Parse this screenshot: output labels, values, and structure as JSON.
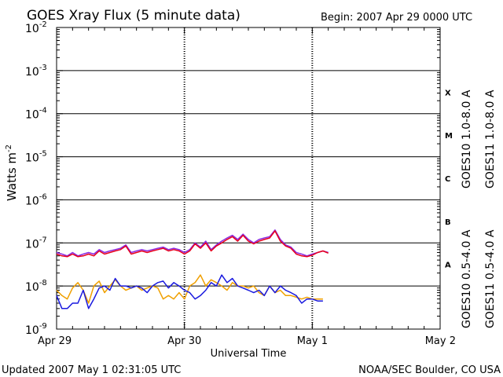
{
  "header": {
    "title": "GOES Xray Flux (5 minute data)",
    "begin": "Begin:  2007 Apr 29 0000 UTC"
  },
  "footer": {
    "updated": "Updated 2007 May  1 02:31:05 UTC",
    "source": "NOAA/SEC Boulder, CO USA"
  },
  "chart_data": {
    "type": "line",
    "title": "GOES Xray Flux (5 minute data)",
    "xlabel": "Universal Time",
    "ylabel_base": "Watts m",
    "ylabel_exp": "-2",
    "x_ticks": [
      "Apr 29",
      "Apr 30",
      "May 1",
      "May 2"
    ],
    "x_range_hours": [
      0,
      72
    ],
    "y_scale": "log",
    "y_range": [
      1e-09,
      0.01
    ],
    "y_ticks": [
      {
        "base": "10",
        "exp": "-9"
      },
      {
        "base": "10",
        "exp": "-8"
      },
      {
        "base": "10",
        "exp": "-7"
      },
      {
        "base": "10",
        "exp": "-6"
      },
      {
        "base": "10",
        "exp": "-5"
      },
      {
        "base": "10",
        "exp": "-4"
      },
      {
        "base": "10",
        "exp": "-3"
      },
      {
        "base": "10",
        "exp": "-2"
      }
    ],
    "flare_classes": [
      "A",
      "B",
      "C",
      "M",
      "X"
    ],
    "legend_long": [
      {
        "name": "GOES10 1.0-8.0 A",
        "color": "#8a2be2"
      },
      {
        "name": "GOES11 1.0-8.0 A",
        "color": "#e8001c"
      }
    ],
    "legend_short": [
      {
        "name": "GOES10 0.5-4.0 A",
        "color": "#f0a000"
      },
      {
        "name": "GOES11 0.5-4.0 A",
        "color": "#1a1adf"
      }
    ],
    "series": [
      {
        "name": "GOES10 1.0-8.0 A",
        "color": "#8a2be2",
        "x": [
          0,
          1,
          2,
          3,
          4,
          5,
          6,
          7,
          8,
          9,
          10,
          11,
          12,
          13,
          14,
          15,
          16,
          17,
          18,
          19,
          20,
          21,
          22,
          23,
          24,
          25,
          26,
          27,
          28,
          29,
          30,
          31,
          32,
          33,
          34,
          35,
          36,
          37,
          38,
          39,
          40,
          41,
          42,
          43,
          44,
          45,
          46,
          47,
          48,
          49,
          50,
          51
        ],
        "y": [
          6e-08,
          5.5e-08,
          5e-08,
          6e-08,
          5e-08,
          5.5e-08,
          6e-08,
          5.5e-08,
          7e-08,
          6e-08,
          6.5e-08,
          7e-08,
          7.5e-08,
          9e-08,
          6e-08,
          6.5e-08,
          7e-08,
          6.5e-08,
          7e-08,
          7.5e-08,
          8e-08,
          7e-08,
          7.5e-08,
          7e-08,
          6e-08,
          7e-08,
          1e-07,
          8e-08,
          1.1e-07,
          7e-08,
          9e-08,
          1.1e-07,
          1.3e-07,
          1.5e-07,
          1.2e-07,
          1.6e-07,
          1.2e-07,
          1e-07,
          1.2e-07,
          1.3e-07,
          1.4e-07,
          2e-07,
          1.2e-07,
          9e-08,
          8e-08,
          6e-08,
          5.5e-08,
          5e-08,
          5.5e-08,
          6e-08,
          6.5e-08,
          6e-08
        ]
      },
      {
        "name": "GOES11 1.0-8.0 A",
        "color": "#e8001c",
        "x": [
          0,
          1,
          2,
          3,
          4,
          5,
          6,
          7,
          8,
          9,
          10,
          11,
          12,
          13,
          14,
          15,
          16,
          17,
          18,
          19,
          20,
          21,
          22,
          23,
          24,
          25,
          26,
          27,
          28,
          29,
          30,
          31,
          32,
          33,
          34,
          35,
          36,
          37,
          38,
          39,
          40,
          41,
          42,
          43,
          44,
          45,
          46,
          47,
          48,
          49,
          50,
          51
        ],
        "y": [
          5.5e-08,
          5e-08,
          4.8e-08,
          5.5e-08,
          4.8e-08,
          5e-08,
          5.5e-08,
          5e-08,
          6.5e-08,
          5.5e-08,
          6e-08,
          6.5e-08,
          7e-08,
          8.5e-08,
          5.5e-08,
          6e-08,
          6.5e-08,
          6e-08,
          6.5e-08,
          7e-08,
          7.5e-08,
          6.5e-08,
          7e-08,
          6.5e-08,
          5.5e-08,
          6.5e-08,
          9.5e-08,
          7.5e-08,
          1e-07,
          6.5e-08,
          8.5e-08,
          1e-07,
          1.2e-07,
          1.4e-07,
          1.1e-07,
          1.5e-07,
          1.1e-07,
          9.5e-08,
          1.1e-07,
          1.2e-07,
          1.3e-07,
          1.9e-07,
          1.1e-07,
          8.5e-08,
          7.5e-08,
          5.5e-08,
          5e-08,
          4.8e-08,
          5.2e-08,
          6e-08,
          6.5e-08,
          5.8e-08
        ]
      },
      {
        "name": "GOES10 0.5-4.0 A",
        "color": "#f0a000",
        "x": [
          0,
          1,
          2,
          3,
          4,
          5,
          6,
          7,
          8,
          9,
          10,
          11,
          12,
          13,
          14,
          15,
          16,
          17,
          18,
          19,
          20,
          21,
          22,
          23,
          24,
          25,
          26,
          27,
          28,
          29,
          30,
          31,
          32,
          33,
          34,
          35,
          36,
          37,
          38,
          39,
          40,
          41,
          42,
          43,
          44,
          45,
          46,
          47,
          48,
          49,
          50
        ],
        "y": [
          8e-09,
          6e-09,
          5e-09,
          9e-09,
          1.2e-08,
          8e-09,
          4e-09,
          1e-08,
          1.3e-08,
          7e-09,
          1e-08,
          1.4e-08,
          1e-08,
          8e-09,
          9e-09,
          1e-08,
          8e-09,
          9e-09,
          1e-08,
          9e-09,
          5e-09,
          6e-09,
          5e-09,
          7e-09,
          5e-09,
          1e-08,
          1.2e-08,
          1.8e-08,
          1e-08,
          1.4e-08,
          1.2e-08,
          1e-08,
          8e-09,
          1.2e-08,
          1e-08,
          1e-08,
          9e-09,
          1e-08,
          7e-09,
          6e-09,
          1e-08,
          7e-09,
          8e-09,
          6e-09,
          6e-09,
          5.5e-09,
          5e-09,
          5.5e-09,
          5e-09,
          5e-09,
          5e-09
        ]
      },
      {
        "name": "GOES11 0.5-4.0 A",
        "color": "#1a1adf",
        "x": [
          0,
          1,
          2,
          3,
          4,
          5,
          6,
          7,
          8,
          9,
          10,
          11,
          12,
          13,
          14,
          15,
          16,
          17,
          18,
          19,
          20,
          21,
          22,
          23,
          24,
          25,
          26,
          27,
          28,
          29,
          30,
          31,
          32,
          33,
          34,
          35,
          36,
          37,
          38,
          39,
          40,
          41,
          42,
          43,
          44,
          45,
          46,
          47,
          48,
          49,
          50
        ],
        "y": [
          6e-09,
          3e-09,
          3e-09,
          4e-09,
          4e-09,
          8e-09,
          3e-09,
          5e-09,
          9e-09,
          1e-08,
          8e-09,
          1.5e-08,
          1e-08,
          1e-08,
          9e-09,
          1e-08,
          9e-09,
          7e-09,
          1e-08,
          1.2e-08,
          1.3e-08,
          9e-09,
          1.2e-08,
          1e-08,
          8e-09,
          7e-09,
          5e-09,
          6e-09,
          8e-09,
          1.2e-08,
          1e-08,
          1.8e-08,
          1.2e-08,
          1.5e-08,
          1e-08,
          9e-09,
          8e-09,
          7e-09,
          8e-09,
          6e-09,
          1e-08,
          7e-09,
          1e-08,
          8e-09,
          7e-09,
          6e-09,
          4e-09,
          5e-09,
          5e-09,
          4.5e-09,
          4.5e-09
        ]
      }
    ]
  }
}
